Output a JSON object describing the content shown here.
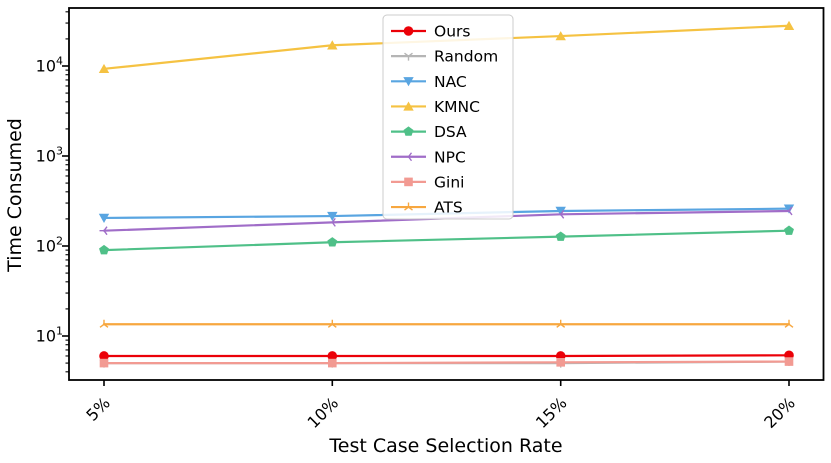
{
  "chart_data": {
    "type": "line",
    "title": "",
    "xlabel": "Test Case Selection Rate",
    "ylabel": "Time Consumed",
    "x_categories": [
      "5%",
      "10%",
      "15%",
      "20%"
    ],
    "x_scale": "category",
    "y_scale": "log",
    "ylim": [
      3.2,
      44000
    ],
    "y_major_ticks": [
      {
        "base": "10",
        "exp": "1",
        "value": 10
      },
      {
        "base": "10",
        "exp": "2",
        "value": 100
      },
      {
        "base": "10",
        "exp": "3",
        "value": 1000
      },
      {
        "base": "10",
        "exp": "4",
        "value": 10000
      }
    ],
    "grid": false,
    "legend": {
      "position": "upper-center",
      "border_color": "#cccccc",
      "background": "#ffffff"
    },
    "series": [
      {
        "name": "Ours",
        "color": "#eb0008",
        "marker": "circle",
        "values": [
          6.0,
          6.0,
          6.0,
          6.1
        ]
      },
      {
        "name": "Random",
        "color": "#b5b5b5",
        "marker": "tri-thin-down",
        "values": [
          5.0,
          5.0,
          5.0,
          5.2
        ]
      },
      {
        "name": "NAC",
        "color": "#59a5e1",
        "marker": "triangle-down",
        "values": [
          205,
          215,
          245,
          260
        ]
      },
      {
        "name": "KMNC",
        "color": "#f5c242",
        "marker": "triangle-up",
        "values": [
          9300,
          17000,
          21500,
          28000
        ]
      },
      {
        "name": "DSA",
        "color": "#4fc088",
        "marker": "pentagon",
        "values": [
          90,
          110,
          127,
          148
        ]
      },
      {
        "name": "NPC",
        "color": "#a06dc8",
        "marker": "tri-thin-left",
        "values": [
          148,
          183,
          225,
          245
        ]
      },
      {
        "name": "Gini",
        "color": "#f29a92",
        "marker": "square",
        "values": [
          5.0,
          5.0,
          5.1,
          5.2
        ]
      },
      {
        "name": "ATS",
        "color": "#f7a73f",
        "marker": "tri-thin-up",
        "values": [
          13.5,
          13.5,
          13.5,
          13.5
        ]
      }
    ]
  }
}
